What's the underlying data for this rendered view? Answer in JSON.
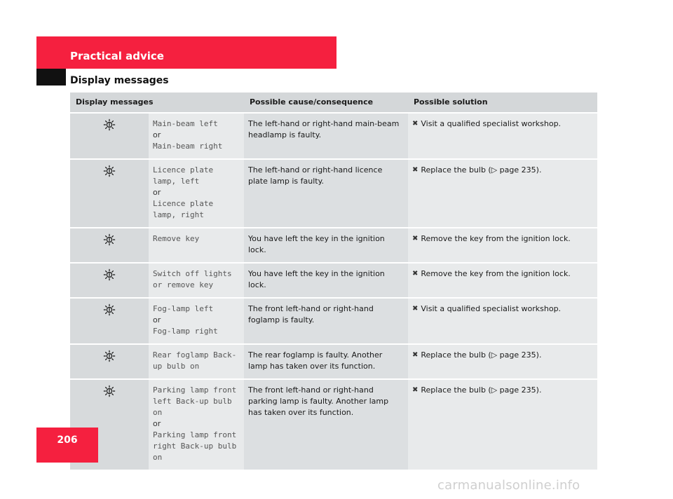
{
  "header": {
    "section_title": "Practical advice",
    "page_subtitle": "Display messages",
    "accent_color": "#f5203f"
  },
  "table": {
    "columns": [
      "Display messages",
      "Possible cause/consequence",
      "Possible solution"
    ],
    "rows": [
      {
        "icon": "lamp-warning-icon",
        "display_lines": [
          "Main-beam left",
          "or",
          "Main-beam right"
        ],
        "cause": "The left-hand or right-hand main-beam headlamp is faulty.",
        "solution": "Visit a qualified specialist workshop."
      },
      {
        "icon": "lamp-warning-icon",
        "display_lines": [
          "Licence plate\nlamp, left",
          "or",
          "Licence plate\nlamp, right"
        ],
        "cause": "The left-hand or right-hand licence plate lamp is faulty.",
        "solution": "Replace the bulb (▷ page 235)."
      },
      {
        "icon": "lamp-warning-icon",
        "display_lines": [
          "Remove key"
        ],
        "cause": "You have left the key in the ignition lock.",
        "solution": "Remove the key from the ignition lock."
      },
      {
        "icon": "lamp-warning-icon",
        "display_lines": [
          "Switch off lights\nor remove key"
        ],
        "cause": "You have left the key in the ignition lock.",
        "solution": "Remove the key from the ignition lock."
      },
      {
        "icon": "lamp-warning-icon",
        "display_lines": [
          "Fog-lamp left",
          "or",
          "Fog-lamp right"
        ],
        "cause": "The front left-hand or right-hand foglamp is faulty.",
        "solution": "Visit a qualified specialist workshop."
      },
      {
        "icon": "lamp-warning-icon",
        "display_lines": [
          "Rear foglamp Back-\nup bulb on"
        ],
        "cause": "The rear foglamp is faulty. Another lamp has taken over its function.",
        "solution": "Replace the bulb (▷ page 235)."
      },
      {
        "icon": "lamp-warning-icon",
        "display_lines": [
          "Parking lamp front\nleft Back-up bulb\non",
          "or",
          "Parking lamp front\nright Back-up bulb\non"
        ],
        "cause": "The front left-hand or right-hand parking lamp is faulty. Another lamp has taken over its function.",
        "solution": "Replace the bulb (▷ page 235)."
      }
    ]
  },
  "footer": {
    "page_number": "206",
    "watermark": "carmanualsonline.info"
  }
}
